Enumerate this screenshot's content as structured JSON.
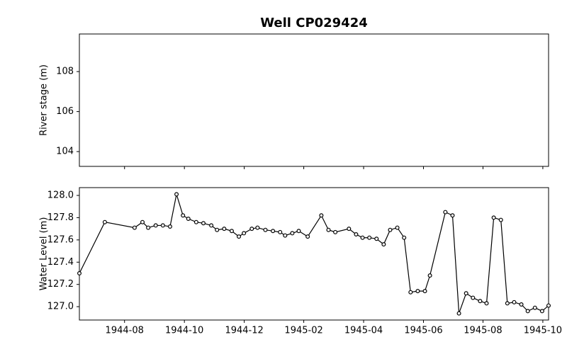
{
  "chart_data": [
    {
      "type": "line",
      "title": "Well CP029424",
      "ylabel": "River stage (m)",
      "ylim": [
        103.26,
        109.88
      ],
      "yticks": [
        104,
        106,
        108
      ],
      "series": []
    },
    {
      "type": "line",
      "ylabel": "Water Level (m)",
      "xlim": [
        1944.457,
        1945.766
      ],
      "xticks": [
        {
          "value": 1944.583,
          "label": "1944-08"
        },
        {
          "value": 1944.75,
          "label": "1944-10"
        },
        {
          "value": 1944.917,
          "label": "1944-12"
        },
        {
          "value": 1945.083,
          "label": "1945-02"
        },
        {
          "value": 1945.25,
          "label": "1945-04"
        },
        {
          "value": 1945.417,
          "label": "1945-06"
        },
        {
          "value": 1945.583,
          "label": "1945-08"
        },
        {
          "value": 1945.75,
          "label": "1945-10"
        }
      ],
      "ylim": [
        126.88,
        128.07
      ],
      "yticks": [
        {
          "value": 127,
          "label": "127.0"
        },
        127.2,
        127.4,
        127.6,
        127.8,
        {
          "value": 128,
          "label": "128.0"
        }
      ],
      "x": [
        1944.457,
        1944.528,
        1944.611,
        1944.633,
        1944.649,
        1944.67,
        1944.69,
        1944.71,
        1944.728,
        1944.746,
        1944.761,
        1944.783,
        1944.803,
        1944.825,
        1944.841,
        1944.861,
        1944.882,
        1944.902,
        1944.916,
        1944.938,
        1944.954,
        1944.976,
        1944.997,
        1945.017,
        1945.031,
        1945.051,
        1945.069,
        1945.094,
        1945.132,
        1945.152,
        1945.171,
        1945.209,
        1945.229,
        1945.247,
        1945.266,
        1945.286,
        1945.306,
        1945.324,
        1945.344,
        1945.363,
        1945.381,
        1945.401,
        1945.421,
        1945.435,
        1945.478,
        1945.498,
        1945.516,
        1945.536,
        1945.555,
        1945.575,
        1945.593,
        1945.613,
        1945.633,
        1945.651,
        1945.67,
        1945.69,
        1945.708,
        1945.728,
        1945.748,
        1945.766
      ],
      "series": [
        {
          "color": "#000000",
          "values": [
            127.3,
            127.76,
            127.71,
            127.76,
            127.71,
            127.73,
            127.73,
            127.72,
            128.01,
            127.82,
            127.79,
            127.76,
            127.75,
            127.73,
            127.69,
            127.7,
            127.68,
            127.63,
            127.66,
            127.7,
            127.71,
            127.69,
            127.68,
            127.67,
            127.64,
            127.66,
            127.68,
            127.63,
            127.82,
            127.69,
            127.67,
            127.7,
            127.65,
            127.62,
            127.62,
            127.61,
            127.56,
            127.69,
            127.71,
            127.62,
            127.13,
            127.14,
            127.14,
            127.28,
            127.85,
            127.82,
            126.94,
            127.12,
            127.08,
            127.05,
            127.03,
            127.8,
            127.78,
            127.03,
            127.04,
            127.02,
            126.96,
            126.99,
            126.96,
            127.01
          ]
        }
      ]
    }
  ]
}
